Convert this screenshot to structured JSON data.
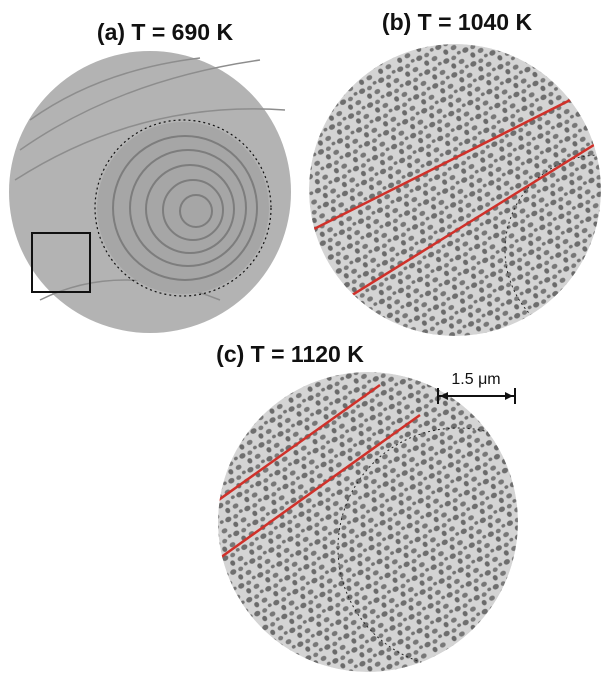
{
  "panels": [
    {
      "label": "(a) T = 690 K"
    },
    {
      "label": "(b) T = 1040 K"
    },
    {
      "label": "(c) T = 1120 K"
    }
  ],
  "scale_bar": {
    "label": "1.5 μm"
  }
}
